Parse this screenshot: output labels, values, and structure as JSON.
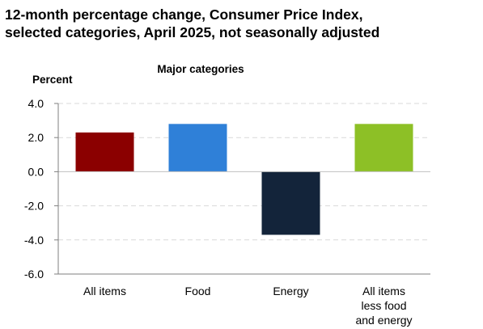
{
  "title": {
    "line1": "12-month percentage change, Consumer Price Index,",
    "line2": "selected categories, April 2025, not seasonally adjusted"
  },
  "chart_data": {
    "type": "bar",
    "title": "12-month percentage change, Consumer Price Index, selected categories, April 2025, not seasonally adjusted",
    "subtitle": "Major categories",
    "ylabel": "Percent",
    "xlabel": "",
    "ylim": [
      -6.0,
      4.0
    ],
    "yticks": [
      4.0,
      2.0,
      0.0,
      -2.0,
      -4.0,
      -6.0
    ],
    "ytick_labels": [
      "4.0",
      "2.0",
      "0.0",
      "-2.0",
      "-4.0",
      "-6.0"
    ],
    "grid": true,
    "legend": "none",
    "categories": [
      "All items",
      "Food",
      "Energy",
      "All items less food and energy"
    ],
    "category_label_lines": [
      [
        "All items"
      ],
      [
        "Food"
      ],
      [
        "Energy"
      ],
      [
        "All items",
        "less food",
        "and energy"
      ]
    ],
    "values": [
      2.3,
      2.8,
      -3.7,
      2.8
    ],
    "colors": [
      "#8b0000",
      "#2f80d8",
      "#13243a",
      "#8dc026"
    ]
  }
}
